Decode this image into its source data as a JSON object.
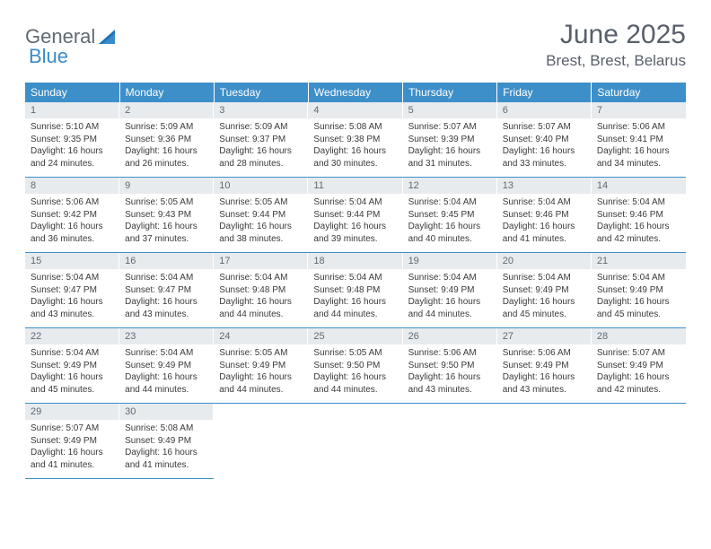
{
  "brand": {
    "word1": "General",
    "word2": "Blue"
  },
  "title": "June 2025",
  "location": "Brest, Brest, Belarus",
  "colors": {
    "header_bg": "#3d8fc9",
    "header_text": "#ffffff",
    "daynum_bg": "#e8ebee",
    "daynum_text": "#5e6a74",
    "body_text": "#3a3a3a",
    "rule": "#3d8fc9",
    "brand_gray": "#5f6a72",
    "brand_blue": "#3a8bc9",
    "page_bg": "#ffffff"
  },
  "typography": {
    "title_fontsize": 30,
    "location_fontsize": 17,
    "dayhead_fontsize": 12,
    "daynum_fontsize": 11,
    "body_fontsize": 10
  },
  "day_names": [
    "Sunday",
    "Monday",
    "Tuesday",
    "Wednesday",
    "Thursday",
    "Friday",
    "Saturday"
  ],
  "weeks": [
    [
      {
        "num": "1",
        "sunrise": "Sunrise: 5:10 AM",
        "sunset": "Sunset: 9:35 PM",
        "day1": "Daylight: 16 hours",
        "day2": "and 24 minutes."
      },
      {
        "num": "2",
        "sunrise": "Sunrise: 5:09 AM",
        "sunset": "Sunset: 9:36 PM",
        "day1": "Daylight: 16 hours",
        "day2": "and 26 minutes."
      },
      {
        "num": "3",
        "sunrise": "Sunrise: 5:09 AM",
        "sunset": "Sunset: 9:37 PM",
        "day1": "Daylight: 16 hours",
        "day2": "and 28 minutes."
      },
      {
        "num": "4",
        "sunrise": "Sunrise: 5:08 AM",
        "sunset": "Sunset: 9:38 PM",
        "day1": "Daylight: 16 hours",
        "day2": "and 30 minutes."
      },
      {
        "num": "5",
        "sunrise": "Sunrise: 5:07 AM",
        "sunset": "Sunset: 9:39 PM",
        "day1": "Daylight: 16 hours",
        "day2": "and 31 minutes."
      },
      {
        "num": "6",
        "sunrise": "Sunrise: 5:07 AM",
        "sunset": "Sunset: 9:40 PM",
        "day1": "Daylight: 16 hours",
        "day2": "and 33 minutes."
      },
      {
        "num": "7",
        "sunrise": "Sunrise: 5:06 AM",
        "sunset": "Sunset: 9:41 PM",
        "day1": "Daylight: 16 hours",
        "day2": "and 34 minutes."
      }
    ],
    [
      {
        "num": "8",
        "sunrise": "Sunrise: 5:06 AM",
        "sunset": "Sunset: 9:42 PM",
        "day1": "Daylight: 16 hours",
        "day2": "and 36 minutes."
      },
      {
        "num": "9",
        "sunrise": "Sunrise: 5:05 AM",
        "sunset": "Sunset: 9:43 PM",
        "day1": "Daylight: 16 hours",
        "day2": "and 37 minutes."
      },
      {
        "num": "10",
        "sunrise": "Sunrise: 5:05 AM",
        "sunset": "Sunset: 9:44 PM",
        "day1": "Daylight: 16 hours",
        "day2": "and 38 minutes."
      },
      {
        "num": "11",
        "sunrise": "Sunrise: 5:04 AM",
        "sunset": "Sunset: 9:44 PM",
        "day1": "Daylight: 16 hours",
        "day2": "and 39 minutes."
      },
      {
        "num": "12",
        "sunrise": "Sunrise: 5:04 AM",
        "sunset": "Sunset: 9:45 PM",
        "day1": "Daylight: 16 hours",
        "day2": "and 40 minutes."
      },
      {
        "num": "13",
        "sunrise": "Sunrise: 5:04 AM",
        "sunset": "Sunset: 9:46 PM",
        "day1": "Daylight: 16 hours",
        "day2": "and 41 minutes."
      },
      {
        "num": "14",
        "sunrise": "Sunrise: 5:04 AM",
        "sunset": "Sunset: 9:46 PM",
        "day1": "Daylight: 16 hours",
        "day2": "and 42 minutes."
      }
    ],
    [
      {
        "num": "15",
        "sunrise": "Sunrise: 5:04 AM",
        "sunset": "Sunset: 9:47 PM",
        "day1": "Daylight: 16 hours",
        "day2": "and 43 minutes."
      },
      {
        "num": "16",
        "sunrise": "Sunrise: 5:04 AM",
        "sunset": "Sunset: 9:47 PM",
        "day1": "Daylight: 16 hours",
        "day2": "and 43 minutes."
      },
      {
        "num": "17",
        "sunrise": "Sunrise: 5:04 AM",
        "sunset": "Sunset: 9:48 PM",
        "day1": "Daylight: 16 hours",
        "day2": "and 44 minutes."
      },
      {
        "num": "18",
        "sunrise": "Sunrise: 5:04 AM",
        "sunset": "Sunset: 9:48 PM",
        "day1": "Daylight: 16 hours",
        "day2": "and 44 minutes."
      },
      {
        "num": "19",
        "sunrise": "Sunrise: 5:04 AM",
        "sunset": "Sunset: 9:49 PM",
        "day1": "Daylight: 16 hours",
        "day2": "and 44 minutes."
      },
      {
        "num": "20",
        "sunrise": "Sunrise: 5:04 AM",
        "sunset": "Sunset: 9:49 PM",
        "day1": "Daylight: 16 hours",
        "day2": "and 45 minutes."
      },
      {
        "num": "21",
        "sunrise": "Sunrise: 5:04 AM",
        "sunset": "Sunset: 9:49 PM",
        "day1": "Daylight: 16 hours",
        "day2": "and 45 minutes."
      }
    ],
    [
      {
        "num": "22",
        "sunrise": "Sunrise: 5:04 AM",
        "sunset": "Sunset: 9:49 PM",
        "day1": "Daylight: 16 hours",
        "day2": "and 45 minutes."
      },
      {
        "num": "23",
        "sunrise": "Sunrise: 5:04 AM",
        "sunset": "Sunset: 9:49 PM",
        "day1": "Daylight: 16 hours",
        "day2": "and 44 minutes."
      },
      {
        "num": "24",
        "sunrise": "Sunrise: 5:05 AM",
        "sunset": "Sunset: 9:49 PM",
        "day1": "Daylight: 16 hours",
        "day2": "and 44 minutes."
      },
      {
        "num": "25",
        "sunrise": "Sunrise: 5:05 AM",
        "sunset": "Sunset: 9:50 PM",
        "day1": "Daylight: 16 hours",
        "day2": "and 44 minutes."
      },
      {
        "num": "26",
        "sunrise": "Sunrise: 5:06 AM",
        "sunset": "Sunset: 9:50 PM",
        "day1": "Daylight: 16 hours",
        "day2": "and 43 minutes."
      },
      {
        "num": "27",
        "sunrise": "Sunrise: 5:06 AM",
        "sunset": "Sunset: 9:49 PM",
        "day1": "Daylight: 16 hours",
        "day2": "and 43 minutes."
      },
      {
        "num": "28",
        "sunrise": "Sunrise: 5:07 AM",
        "sunset": "Sunset: 9:49 PM",
        "day1": "Daylight: 16 hours",
        "day2": "and 42 minutes."
      }
    ],
    [
      {
        "num": "29",
        "sunrise": "Sunrise: 5:07 AM",
        "sunset": "Sunset: 9:49 PM",
        "day1": "Daylight: 16 hours",
        "day2": "and 41 minutes."
      },
      {
        "num": "30",
        "sunrise": "Sunrise: 5:08 AM",
        "sunset": "Sunset: 9:49 PM",
        "day1": "Daylight: 16 hours",
        "day2": "and 41 minutes."
      },
      null,
      null,
      null,
      null,
      null
    ]
  ]
}
